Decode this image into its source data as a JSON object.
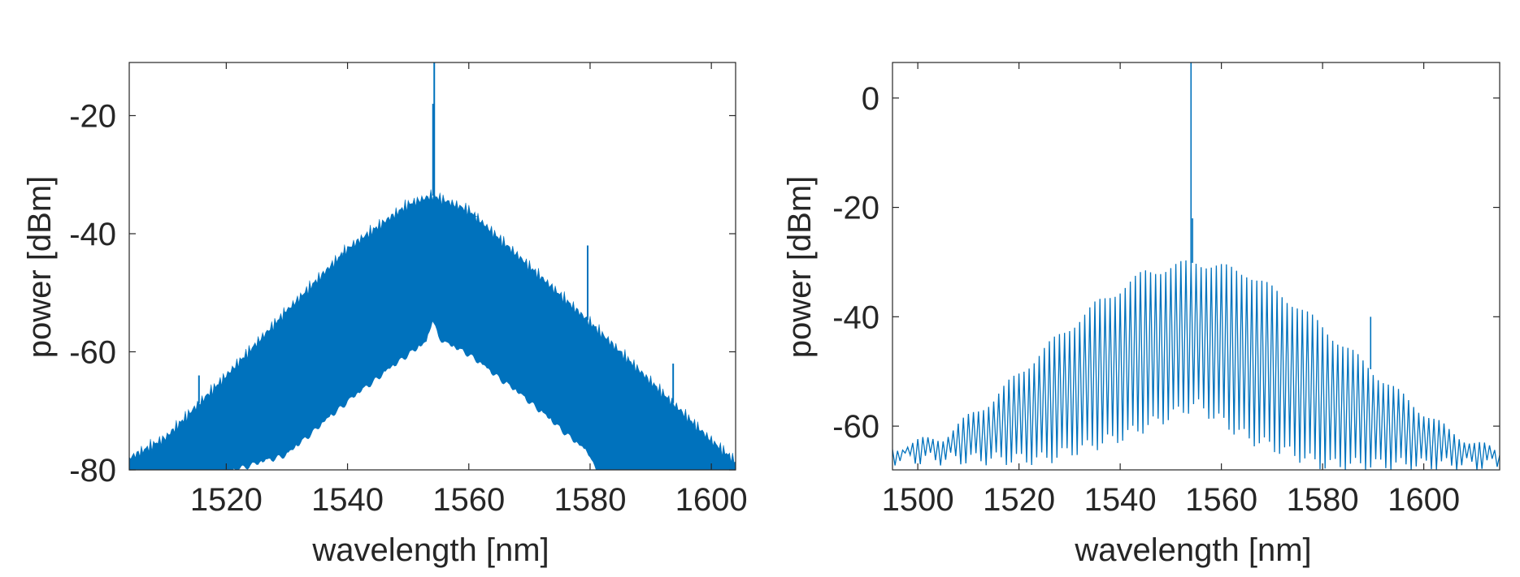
{
  "chart_data": [
    {
      "type": "line",
      "xlabel": "wavelength [nm]",
      "ylabel": "power [dBm]",
      "xlim": [
        1504,
        1604
      ],
      "ylim": [
        -80,
        -11
      ],
      "xticks": [
        1520,
        1540,
        1560,
        1580,
        1600
      ],
      "yticks": [
        -80,
        -60,
        -40,
        -20
      ],
      "grid": false,
      "color": "#0072BD",
      "series": [
        {
          "style": "filled-band",
          "upper_envelope": [
            [
              1504,
              -78
            ],
            [
              1510,
              -74.5
            ],
            [
              1520,
              -64
            ],
            [
              1530,
              -53
            ],
            [
              1540,
              -42.5
            ],
            [
              1550,
              -35
            ],
            [
              1554,
              -33.5
            ],
            [
              1560,
              -36
            ],
            [
              1570,
              -45.5
            ],
            [
              1580,
              -55
            ],
            [
              1590,
              -65
            ],
            [
              1600,
              -75
            ],
            [
              1604,
              -78.5
            ]
          ],
          "lower_envelope": [
            [
              1504,
              -80
            ],
            [
              1520,
              -80
            ],
            [
              1530,
              -77
            ],
            [
              1540,
              -68
            ],
            [
              1550,
              -60
            ],
            [
              1553,
              -58
            ],
            [
              1554,
              -54
            ],
            [
              1555,
              -57
            ],
            [
              1556,
              -58
            ],
            [
              1560,
              -60
            ],
            [
              1570,
              -68
            ],
            [
              1580,
              -77
            ],
            [
              1581,
              -80
            ],
            [
              1604,
              -80
            ]
          ],
          "spikes": [
            [
              1554.3,
              -10
            ],
            [
              1554.1,
              -18
            ],
            [
              1515.5,
              -64
            ],
            [
              1529.8,
              -54
            ],
            [
              1539.3,
              -47.5
            ],
            [
              1547.3,
              -38.5
            ],
            [
              1561.2,
              -37
            ],
            [
              1579.6,
              -42
            ],
            [
              1588.0,
              -63
            ],
            [
              1593.7,
              -62
            ]
          ]
        }
      ]
    },
    {
      "type": "line",
      "xlabel": "wavelength [nm]",
      "ylabel": "power [dBm]",
      "xlim": [
        1495,
        1615
      ],
      "ylim": [
        -68,
        6.5
      ],
      "xticks": [
        1500,
        1520,
        1540,
        1560,
        1580,
        1600
      ],
      "yticks": [
        -60,
        -40,
        -20,
        0
      ],
      "grid": false,
      "color": "#0072BD",
      "series": [
        {
          "style": "comb",
          "line_spacing_nm": 1.0,
          "peak_envelope": [
            [
              1495,
              -64
            ],
            [
              1505,
              -62
            ],
            [
              1515,
              -55
            ],
            [
              1525,
              -46
            ],
            [
              1535,
              -38
            ],
            [
              1545,
              -32
            ],
            [
              1555,
              -30
            ],
            [
              1565,
              -32
            ],
            [
              1575,
              -38
            ],
            [
              1585,
              -46
            ],
            [
              1595,
              -54
            ],
            [
              1605,
              -61
            ],
            [
              1615,
              -65
            ]
          ],
          "trough_envelope": [
            [
              1495,
              -66
            ],
            [
              1510,
              -66
            ],
            [
              1525,
              -66
            ],
            [
              1540,
              -62
            ],
            [
              1550,
              -58
            ],
            [
              1555,
              -56
            ],
            [
              1565,
              -62
            ],
            [
              1580,
              -67
            ],
            [
              1600,
              -67
            ],
            [
              1615,
              -67
            ]
          ],
          "spikes": [
            [
              1554.0,
              6.5
            ],
            [
              1554.3,
              -22
            ],
            [
              1589.5,
              -40
            ],
            [
              1577.5,
              -40
            ]
          ]
        }
      ]
    }
  ]
}
